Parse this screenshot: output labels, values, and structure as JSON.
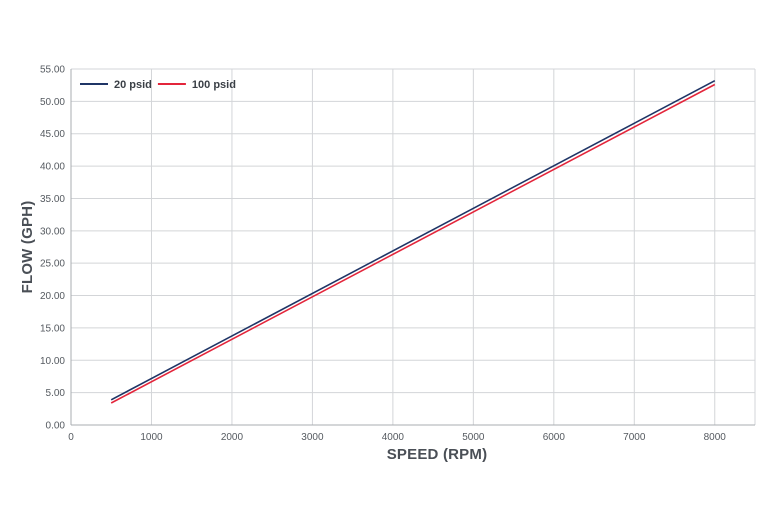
{
  "chart_data": {
    "type": "line",
    "title": "",
    "xlabel": "SPEED (RPM)",
    "ylabel": "FLOW (GPH)",
    "xlim": [
      0,
      8500
    ],
    "ylim": [
      0,
      55
    ],
    "x_ticks": [
      0,
      1000,
      2000,
      3000,
      4000,
      5000,
      6000,
      7000,
      8000
    ],
    "y_ticks": [
      "0.00",
      "5.00",
      "10.00",
      "15.00",
      "20.00",
      "25.00",
      "30.00",
      "35.00",
      "40.00",
      "45.00",
      "50.00",
      "55.00"
    ],
    "grid": true,
    "legend_position": "top-left",
    "series": [
      {
        "name": "20 psid",
        "color": "#1f3566",
        "x": [
          500,
          8000
        ],
        "y": [
          3.9,
          53.2
        ]
      },
      {
        "name": "100 psid",
        "color": "#e3253b",
        "x": [
          500,
          8000
        ],
        "y": [
          3.4,
          52.6
        ]
      }
    ]
  }
}
